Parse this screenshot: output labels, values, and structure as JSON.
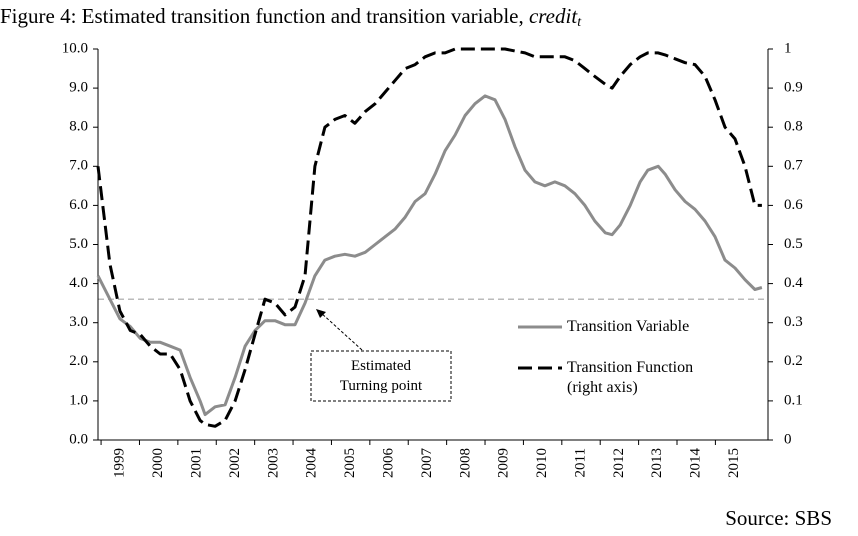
{
  "chart_data": {
    "type": "line",
    "title": "Figure 4: Estimated transition function and transition variable,",
    "title_variable": "credit",
    "title_subscript": "t",
    "source": "Source: SBS",
    "annotation": "Estimated\nTurning point",
    "reference_line": 3.6,
    "x": [
      1998.92,
      1999.23,
      1999.49,
      1999.76,
      2000.02,
      2000.28,
      2000.54,
      2000.8,
      2001.06,
      2001.32,
      2001.58,
      2001.71,
      2001.97,
      2002.23,
      2002.49,
      2002.75,
      2003.01,
      2003.27,
      2003.53,
      2003.79,
      2004.05,
      2004.31,
      2004.57,
      2004.83,
      2005.09,
      2005.35,
      2005.61,
      2005.88,
      2006.14,
      2006.4,
      2006.66,
      2006.92,
      2007.18,
      2007.44,
      2007.7,
      2007.96,
      2008.22,
      2008.48,
      2008.74,
      2009.0,
      2009.26,
      2009.52,
      2009.78,
      2010.04,
      2010.3,
      2010.56,
      2010.82,
      2011.08,
      2011.34,
      2011.6,
      2011.86,
      2012.13,
      2012.31,
      2012.52,
      2012.78,
      2013.04,
      2013.24,
      2013.51,
      2013.69,
      2013.95,
      2014.21,
      2014.47,
      2014.73,
      2014.99,
      2015.25,
      2015.51,
      2015.77,
      2016.03,
      2016.21
    ],
    "series": [
      {
        "name": "Transition Variable",
        "color": "#8c8c8c",
        "values": [
          4.2,
          3.6,
          3.1,
          2.9,
          2.6,
          2.5,
          2.5,
          2.4,
          2.3,
          1.6,
          1.0,
          0.65,
          0.85,
          0.9,
          1.6,
          2.4,
          2.8,
          3.05,
          3.05,
          2.95,
          2.95,
          3.5,
          4.2,
          4.6,
          4.7,
          4.75,
          4.7,
          4.8,
          5.0,
          5.2,
          5.4,
          5.7,
          6.1,
          6.3,
          6.8,
          7.4,
          7.8,
          8.3,
          8.6,
          8.8,
          8.7,
          8.2,
          7.5,
          6.9,
          6.6,
          6.5,
          6.6,
          6.5,
          6.3,
          6.0,
          5.6,
          5.3,
          5.25,
          5.5,
          6.0,
          6.6,
          6.9,
          7.0,
          6.8,
          6.4,
          6.1,
          5.9,
          5.6,
          5.2,
          4.6,
          4.4,
          4.1,
          3.85,
          3.9
        ]
      },
      {
        "name": "Transition Function\n(right axis)",
        "color": "#000000",
        "dashed": true,
        "axis": "y2",
        "values": [
          0.7,
          0.45,
          0.33,
          0.28,
          0.27,
          0.24,
          0.22,
          0.22,
          0.18,
          0.1,
          0.05,
          0.04,
          0.035,
          0.05,
          0.1,
          0.18,
          0.27,
          0.36,
          0.35,
          0.32,
          0.34,
          0.42,
          0.7,
          0.8,
          0.82,
          0.83,
          0.81,
          0.84,
          0.86,
          0.89,
          0.92,
          0.95,
          0.96,
          0.98,
          0.99,
          0.99,
          1.0,
          1.0,
          1.0,
          1.0,
          1.0,
          1.0,
          0.995,
          0.99,
          0.98,
          0.98,
          0.98,
          0.98,
          0.97,
          0.95,
          0.93,
          0.91,
          0.9,
          0.93,
          0.96,
          0.98,
          0.99,
          0.99,
          0.985,
          0.975,
          0.965,
          0.96,
          0.93,
          0.87,
          0.8,
          0.77,
          0.7,
          0.6,
          0.6
        ]
      }
    ],
    "xlim": [
      1998.92,
      2016.37
    ],
    "xticks": [
      1999,
      2000,
      2001,
      2002,
      2003,
      2004,
      2005,
      2006,
      2007,
      2008,
      2009,
      2010,
      2011,
      2012,
      2013,
      2014,
      2015
    ],
    "ylim": [
      0,
      10
    ],
    "yticks": [
      {
        "value": 0,
        "label": "0.0"
      },
      {
        "value": 1,
        "label": "1.0"
      },
      {
        "value": 2,
        "label": "2.0"
      },
      {
        "value": 3,
        "label": "3.0"
      },
      {
        "value": 4,
        "label": "4.0"
      },
      {
        "value": 5,
        "label": "5.0"
      },
      {
        "value": 6,
        "label": "6.0"
      },
      {
        "value": 7,
        "label": "7.0"
      },
      {
        "value": 8,
        "label": "8.0"
      },
      {
        "value": 9,
        "label": "9.0"
      },
      {
        "value": 10,
        "label": "10.0"
      }
    ],
    "y2lim": [
      0,
      1
    ],
    "y2ticks": [
      0,
      0.1,
      0.2,
      0.3,
      0.4,
      0.5,
      0.6,
      0.7,
      0.8,
      0.9,
      1
    ]
  }
}
